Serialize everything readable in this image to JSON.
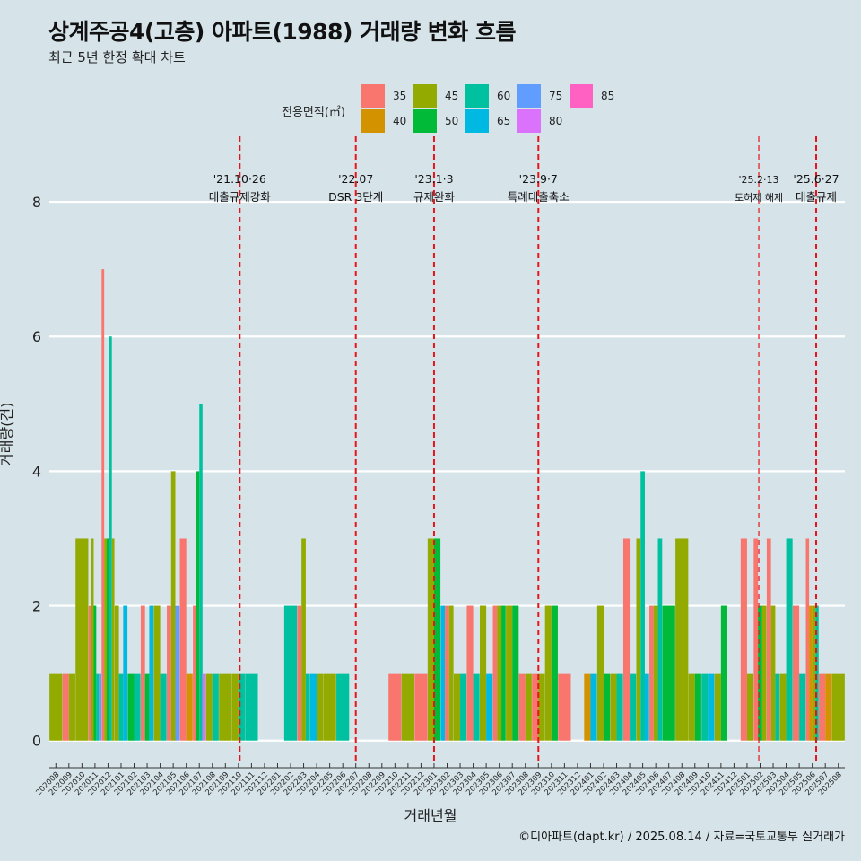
{
  "title": "상계주공4(고층) 아파트(1988) 거래량 변화 흐름",
  "subtitle": "최근 5년 한정 확대 차트",
  "caption": "©디아파트(dapt.kr) / 2025.08.14 / 자료=국토교통부 실거래가",
  "legend": {
    "title": "전용면적(㎡)",
    "items": [
      {
        "label": "35",
        "color": "#F8766D"
      },
      {
        "label": "40",
        "color": "#D39200"
      },
      {
        "label": "45",
        "color": "#93AA00"
      },
      {
        "label": "50",
        "color": "#00BA38"
      },
      {
        "label": "60",
        "color": "#00C19F"
      },
      {
        "label": "65",
        "color": "#00B9E3"
      },
      {
        "label": "75",
        "color": "#619CFF"
      },
      {
        "label": "80",
        "color": "#DB72FB"
      },
      {
        "label": "85",
        "color": "#FF61C3"
      }
    ]
  },
  "chart_data": {
    "type": "bar",
    "title": "상계주공4(고층) 아파트(1988) 거래량 변화 흐름",
    "xlabel": "거래년월",
    "ylabel": "거래량(건)",
    "ylim": [
      -0.35,
      8.6
    ],
    "yticks": [
      0,
      2,
      4,
      6,
      8
    ],
    "months": [
      "202008",
      "202009",
      "202010",
      "202011",
      "202012",
      "202101",
      "202102",
      "202103",
      "202104",
      "202105",
      "202106",
      "202107",
      "202108",
      "202109",
      "202110",
      "202111",
      "202112",
      "202201",
      "202202",
      "202203",
      "202204",
      "202205",
      "202206",
      "202207",
      "202208",
      "202209",
      "202210",
      "202211",
      "202212",
      "202301",
      "202302",
      "202303",
      "202304",
      "202305",
      "202306",
      "202307",
      "202308",
      "202309",
      "202310",
      "202311",
      "202312",
      "202401",
      "202402",
      "202403",
      "202404",
      "202405",
      "202406",
      "202407",
      "202408",
      "202409",
      "202410",
      "202411",
      "202412",
      "202501",
      "202502",
      "202503",
      "202504",
      "202505",
      "202506",
      "202507",
      "202508"
    ],
    "bars": [
      {
        "month": "202008",
        "size": "45",
        "value": 1
      },
      {
        "month": "202009",
        "size": "35",
        "value": 1
      },
      {
        "month": "202009",
        "size": "45",
        "value": 1
      },
      {
        "month": "202010",
        "size": "45",
        "value": 3
      },
      {
        "month": "202011",
        "size": "35",
        "value": 2
      },
      {
        "month": "202011",
        "size": "45",
        "value": 3
      },
      {
        "month": "202011",
        "size": "50",
        "value": 2
      },
      {
        "month": "202011",
        "size": "60",
        "value": 1
      },
      {
        "month": "202011",
        "size": "75",
        "value": 1
      },
      {
        "month": "202012",
        "size": "35",
        "value": 7
      },
      {
        "month": "202012",
        "size": "45",
        "value": 3
      },
      {
        "month": "202012",
        "size": "50",
        "value": 3
      },
      {
        "month": "202012",
        "size": "60",
        "value": 6
      },
      {
        "month": "202012",
        "size": "45",
        "value": 3
      },
      {
        "month": "202101",
        "size": "45",
        "value": 2
      },
      {
        "month": "202101",
        "size": "60",
        "value": 1
      },
      {
        "month": "202101",
        "size": "65",
        "value": 2
      },
      {
        "month": "202102",
        "size": "50",
        "value": 1
      },
      {
        "month": "202102",
        "size": "60",
        "value": 1
      },
      {
        "month": "202103",
        "size": "35",
        "value": 2
      },
      {
        "month": "202103",
        "size": "50",
        "value": 1
      },
      {
        "month": "202103",
        "size": "65",
        "value": 2
      },
      {
        "month": "202104",
        "size": "45",
        "value": 2
      },
      {
        "month": "202104",
        "size": "60",
        "value": 1
      },
      {
        "month": "202105",
        "size": "35",
        "value": 2
      },
      {
        "month": "202105",
        "size": "45",
        "value": 4
      },
      {
        "month": "202105",
        "size": "75",
        "value": 2
      },
      {
        "month": "202106",
        "size": "35",
        "value": 3
      },
      {
        "month": "202106",
        "size": "40",
        "value": 1
      },
      {
        "month": "202107",
        "size": "35",
        "value": 2
      },
      {
        "month": "202107",
        "size": "50",
        "value": 4
      },
      {
        "month": "202107",
        "size": "60",
        "value": 5
      },
      {
        "month": "202107",
        "size": "80",
        "value": 1
      },
      {
        "month": "202108",
        "size": "45",
        "value": 1
      },
      {
        "month": "202108",
        "size": "60",
        "value": 1
      },
      {
        "month": "202109",
        "size": "45",
        "value": 1
      },
      {
        "month": "202110",
        "size": "45",
        "value": 1
      },
      {
        "month": "202110",
        "size": "60",
        "value": 1
      },
      {
        "month": "202111",
        "size": "60",
        "value": 1
      },
      {
        "month": "202202",
        "size": "60",
        "value": 2
      },
      {
        "month": "202203",
        "size": "35",
        "value": 2
      },
      {
        "month": "202203",
        "size": "45",
        "value": 3
      },
      {
        "month": "202203",
        "size": "60",
        "value": 1
      },
      {
        "month": "202204",
        "size": "65",
        "value": 1
      },
      {
        "month": "202204",
        "size": "45",
        "value": 1
      },
      {
        "month": "202205",
        "size": "45",
        "value": 1
      },
      {
        "month": "202206",
        "size": "60",
        "value": 1
      },
      {
        "month": "202210",
        "size": "35",
        "value": 1
      },
      {
        "month": "202211",
        "size": "45",
        "value": 1
      },
      {
        "month": "202212",
        "size": "35",
        "value": 1
      },
      {
        "month": "202301",
        "size": "45",
        "value": 3
      },
      {
        "month": "202301",
        "size": "50",
        "value": 3
      },
      {
        "month": "202302",
        "size": "65",
        "value": 2
      },
      {
        "month": "202302",
        "size": "35",
        "value": 2
      },
      {
        "month": "202302",
        "size": "45",
        "value": 2
      },
      {
        "month": "202303",
        "size": "45",
        "value": 1
      },
      {
        "month": "202303",
        "size": "60",
        "value": 1
      },
      {
        "month": "202304",
        "size": "35",
        "value": 2
      },
      {
        "month": "202304",
        "size": "60",
        "value": 1
      },
      {
        "month": "202305",
        "size": "45",
        "value": 2
      },
      {
        "month": "202305",
        "size": "65",
        "value": 1
      },
      {
        "month": "202306",
        "size": "35",
        "value": 2
      },
      {
        "month": "202306",
        "size": "45",
        "value": 2
      },
      {
        "month": "202306",
        "size": "50",
        "value": 2
      },
      {
        "month": "202307",
        "size": "45",
        "value": 2
      },
      {
        "month": "202307",
        "size": "50",
        "value": 2
      },
      {
        "month": "202308",
        "size": "35",
        "value": 1
      },
      {
        "month": "202308",
        "size": "45",
        "value": 1
      },
      {
        "month": "202309",
        "size": "35",
        "value": 1
      },
      {
        "month": "202309",
        "size": "45",
        "value": 1
      },
      {
        "month": "202310",
        "size": "45",
        "value": 2
      },
      {
        "month": "202310",
        "size": "50",
        "value": 2
      },
      {
        "month": "202311",
        "size": "35",
        "value": 1
      },
      {
        "month": "202401",
        "size": "40",
        "value": 1
      },
      {
        "month": "202401",
        "size": "65",
        "value": 1
      },
      {
        "month": "202402",
        "size": "45",
        "value": 2
      },
      {
        "month": "202402",
        "size": "50",
        "value": 1
      },
      {
        "month": "202403",
        "size": "45",
        "value": 1
      },
      {
        "month": "202403",
        "size": "60",
        "value": 1
      },
      {
        "month": "202404",
        "size": "35",
        "value": 3
      },
      {
        "month": "202404",
        "size": "60",
        "value": 1
      },
      {
        "month": "202405",
        "size": "45",
        "value": 3
      },
      {
        "month": "202405",
        "size": "60",
        "value": 4
      },
      {
        "month": "202405",
        "size": "65",
        "value": 1
      },
      {
        "month": "202406",
        "size": "35",
        "value": 2
      },
      {
        "month": "202406",
        "size": "45",
        "value": 2
      },
      {
        "month": "202406",
        "size": "60",
        "value": 3
      },
      {
        "month": "202407",
        "size": "50",
        "value": 2
      },
      {
        "month": "202408",
        "size": "45",
        "value": 3
      },
      {
        "month": "202409",
        "size": "45",
        "value": 1
      },
      {
        "month": "202409",
        "size": "50",
        "value": 1
      },
      {
        "month": "202410",
        "size": "60",
        "value": 1
      },
      {
        "month": "202410",
        "size": "65",
        "value": 1
      },
      {
        "month": "202411",
        "size": "45",
        "value": 1
      },
      {
        "month": "202411",
        "size": "50",
        "value": 2
      },
      {
        "month": "202501",
        "size": "35",
        "value": 3
      },
      {
        "month": "202501",
        "size": "45",
        "value": 1
      },
      {
        "month": "202502",
        "size": "35",
        "value": 3
      },
      {
        "month": "202502",
        "size": "50",
        "value": 2
      },
      {
        "month": "202502",
        "size": "45",
        "value": 2
      },
      {
        "month": "202503",
        "size": "35",
        "value": 3
      },
      {
        "month": "202503",
        "size": "45",
        "value": 2
      },
      {
        "month": "202503",
        "size": "60",
        "value": 1
      },
      {
        "month": "202504",
        "size": "45",
        "value": 1
      },
      {
        "month": "202504",
        "size": "60",
        "value": 3
      },
      {
        "month": "202505",
        "size": "35",
        "value": 2
      },
      {
        "month": "202505",
        "size": "60",
        "value": 1
      },
      {
        "month": "202506",
        "size": "35",
        "value": 3
      },
      {
        "month": "202506",
        "size": "40",
        "value": 2
      },
      {
        "month": "202506",
        "size": "45",
        "value": 2
      },
      {
        "month": "202506",
        "size": "60",
        "value": 2
      },
      {
        "month": "202507",
        "size": "35",
        "value": 1
      },
      {
        "month": "202507",
        "size": "40",
        "value": 1
      },
      {
        "month": "202508",
        "size": "45",
        "value": 1
      }
    ],
    "annotations": [
      {
        "month": "202110.6",
        "date": "'21.10·26",
        "text": "대출규제강화",
        "style": "thick"
      },
      {
        "month": "202207",
        "date": "'22.07",
        "text": "DSR 3단계",
        "style": "thick"
      },
      {
        "month": "202301",
        "date": "'23.1·3",
        "text": "규제완화",
        "style": "thick"
      },
      {
        "month": "202309",
        "date": "'23.9·7",
        "text": "특례대출축소",
        "style": "thick"
      },
      {
        "month": "202502.4",
        "date": "'25.2·13",
        "text": "토허제 해제",
        "style": "thin"
      },
      {
        "month": "202506.8",
        "date": "'25.6·27",
        "text": "대출규제",
        "style": "thick"
      }
    ]
  }
}
